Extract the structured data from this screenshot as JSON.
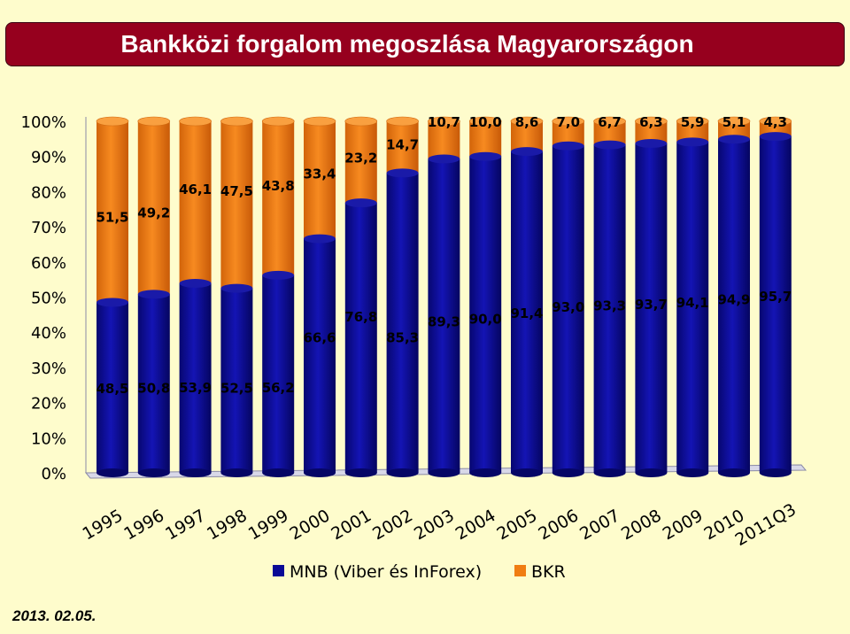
{
  "title": "Bankközi forgalom megoszlása Magyarországon",
  "date": "2013. 02.05.",
  "chart_data": {
    "type": "bar",
    "stacked": true,
    "percent": true,
    "categories": [
      "1995",
      "1996",
      "1997",
      "1998",
      "1999",
      "2000",
      "2001",
      "2002",
      "2003",
      "2004",
      "2005",
      "2006",
      "2007",
      "2008",
      "2009",
      "2010",
      "2011Q3"
    ],
    "series": [
      {
        "name": "MNB (Viber és InForex)",
        "color": "#0a0a96",
        "values": [
          48.5,
          50.8,
          53.9,
          52.5,
          56.2,
          66.6,
          76.8,
          85.3,
          89.3,
          90.0,
          91.4,
          93.0,
          93.3,
          93.7,
          94.1,
          94.9,
          95.7
        ],
        "labels": [
          "48,5",
          "50,8",
          "53,9",
          "52,5",
          "56,2",
          "66,6",
          "76,8",
          "85,3",
          "89,3",
          "90,0",
          "91,4",
          "93,0",
          "93,3",
          "93,7",
          "94,1",
          "94,9",
          "95,7"
        ]
      },
      {
        "name": "BKR",
        "color": "#f07d12",
        "values": [
          51.5,
          49.2,
          46.1,
          47.5,
          43.8,
          33.4,
          23.2,
          14.7,
          10.7,
          10.0,
          8.6,
          7.0,
          6.7,
          6.3,
          5.9,
          5.1,
          4.3
        ],
        "labels": [
          "51,5",
          "49,2",
          "46,1",
          "47,5",
          "43,8",
          "33,4",
          "23,2",
          "14,7",
          "10,7",
          "10,0",
          "8,6",
          "7,0",
          "6,7",
          "6,3",
          "5,9",
          "5,1",
          "4,3"
        ]
      }
    ],
    "ylim": [
      0,
      100
    ],
    "yticks": [
      "0%",
      "10%",
      "20%",
      "30%",
      "40%",
      "50%",
      "60%",
      "70%",
      "80%",
      "90%",
      "100%"
    ],
    "legend": "bottom"
  }
}
